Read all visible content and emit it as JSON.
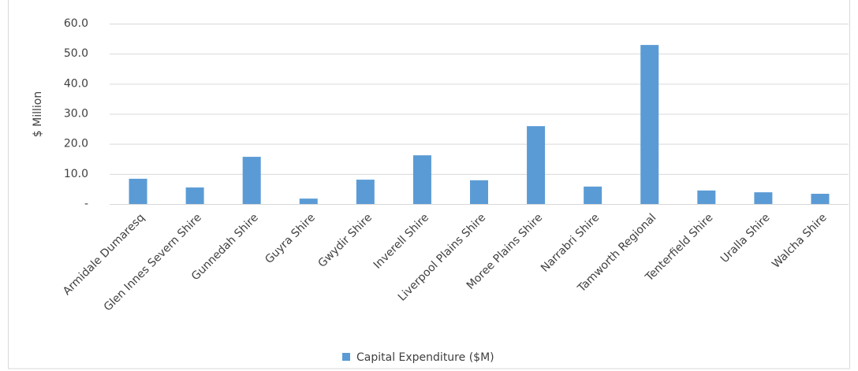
{
  "chart_data": {
    "type": "bar",
    "y_label": "$ Million",
    "categories": [
      "Armidale Dumaresq",
      "Glen Innes Severn Shire",
      "Gunnedah Shire",
      "Guyra Shire",
      "Gwydir Shire",
      "Inverell Shire",
      "Liverpool Plains Shire",
      "Moree Plains Shire",
      "Narrabri Shire",
      "Tamworth Regional",
      "Tenterfield Shire",
      "Uralla Shire",
      "Walcha Shire"
    ],
    "series": [
      {
        "name": "Capital Expenditure ($M)",
        "color": "#5b9bd5",
        "values": [
          8.4,
          5.5,
          15.7,
          1.8,
          8.1,
          16.2,
          7.9,
          25.9,
          5.8,
          52.9,
          4.5,
          3.9,
          3.4
        ]
      }
    ],
    "ylim": [
      0,
      60
    ],
    "yticks": [
      {
        "value": 0,
        "label": "-"
      },
      {
        "value": 10,
        "label": "10.0"
      },
      {
        "value": 20,
        "label": "20.0"
      },
      {
        "value": 30,
        "label": "30.0"
      },
      {
        "value": 40,
        "label": "40.0"
      },
      {
        "value": 50,
        "label": "50.0"
      },
      {
        "value": 60,
        "label": "60.0"
      }
    ],
    "grid": true,
    "legend": "bottom"
  }
}
